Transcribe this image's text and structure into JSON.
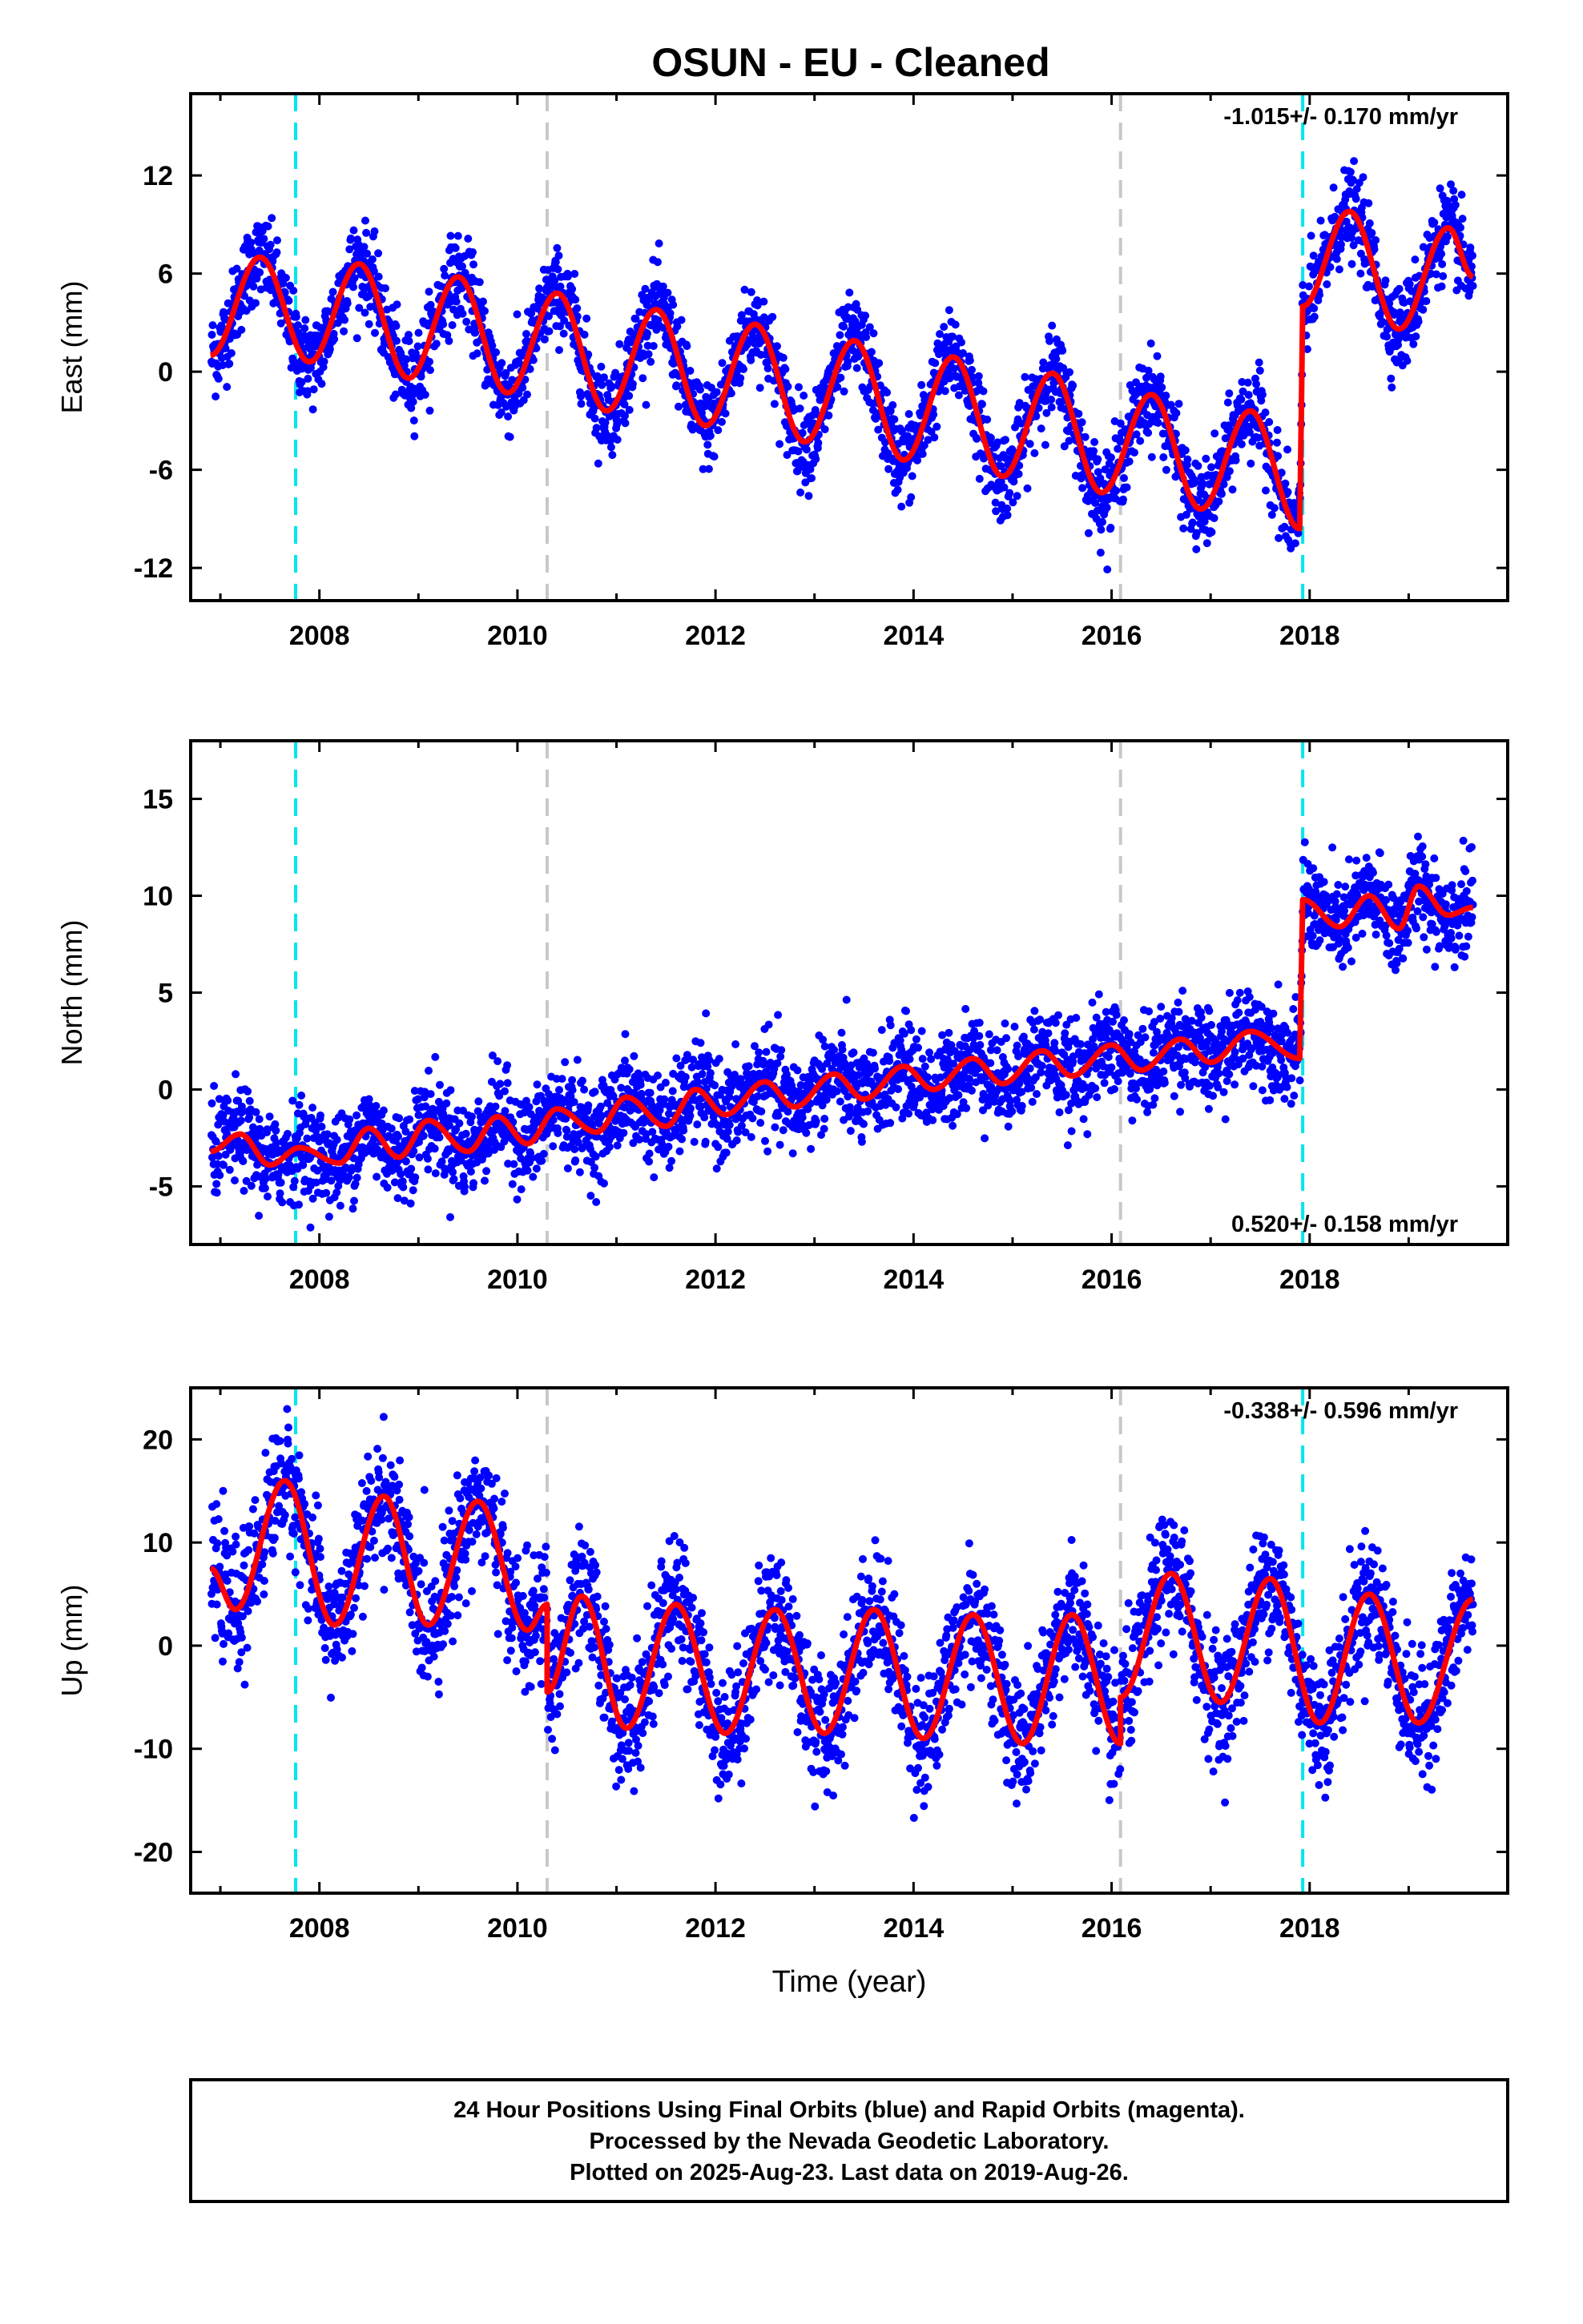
{
  "title": "OSUN  - EU - Cleaned",
  "colors": {
    "final_orbits": "#0000ff",
    "model_fit": "#ff0000",
    "equipment_change": "#00e5ee",
    "unknown_event": "#c8c8c8"
  },
  "chart_data": [
    {
      "type": "scatter",
      "ylabel": "East (mm)",
      "xlabel": "",
      "xlim": [
        2006.7,
        2020.0
      ],
      "ylim": [
        -14,
        17
      ],
      "xticks": [
        "2008",
        "2010",
        "2012",
        "2014",
        "2016",
        "2018"
      ],
      "yticks": [
        "-12",
        "-6",
        "0",
        "6",
        "12"
      ],
      "rate": "-1.015+/- 0.170 mm/yr",
      "rate_position": "top-right",
      "events": [
        {
          "year": 2007.76,
          "kind": "equipment_change"
        },
        {
          "year": 2010.3,
          "kind": "unknown_event"
        },
        {
          "year": 2016.09,
          "kind": "unknown_event"
        },
        {
          "year": 2017.93,
          "kind": "equipment_change"
        }
      ],
      "series": [
        {
          "values": [
            [
              2006.9,
              1.0
            ],
            [
              2007.4,
              7.0
            ],
            [
              2007.9,
              0.6
            ],
            [
              2008.4,
              6.6
            ],
            [
              2008.9,
              -0.4
            ],
            [
              2009.4,
              5.8
            ],
            [
              2009.9,
              -1.3
            ],
            [
              2010.4,
              4.8
            ],
            [
              2010.9,
              -2.4
            ],
            [
              2011.4,
              3.8
            ],
            [
              2011.9,
              -3.3
            ],
            [
              2012.4,
              2.9
            ],
            [
              2012.9,
              -4.3
            ],
            [
              2013.4,
              1.9
            ],
            [
              2013.9,
              -5.4
            ],
            [
              2014.4,
              0.9
            ],
            [
              2014.9,
              -6.4
            ],
            [
              2015.4,
              -0.1
            ],
            [
              2015.9,
              -7.4
            ],
            [
              2016.4,
              -1.4
            ],
            [
              2016.9,
              -8.4
            ],
            [
              2017.4,
              -2.4
            ],
            [
              2017.9,
              -9.6
            ],
            [
              2017.93,
              4.0
            ],
            [
              2018.4,
              9.8
            ],
            [
              2018.9,
              2.6
            ],
            [
              2019.4,
              8.8
            ],
            [
              2019.65,
              5.8
            ]
          ]
        }
      ]
    },
    {
      "type": "scatter",
      "ylabel": "North (mm)",
      "xlabel": "",
      "xlim": [
        2006.7,
        2020.0
      ],
      "ylim": [
        -8,
        18
      ],
      "xticks": [
        "2008",
        "2010",
        "2012",
        "2014",
        "2016",
        "2018"
      ],
      "yticks": [
        "-5",
        "0",
        "5",
        "10",
        "15"
      ],
      "rate": "0.520+/- 0.158 mm/yr",
      "rate_position": "bottom-right",
      "events": [
        {
          "year": 2007.76,
          "kind": "equipment_change"
        },
        {
          "year": 2010.3,
          "kind": "unknown_event"
        },
        {
          "year": 2016.09,
          "kind": "unknown_event"
        },
        {
          "year": 2017.93,
          "kind": "equipment_change"
        }
      ],
      "series": [
        {
          "values": [
            [
              2006.9,
              -3.2
            ],
            [
              2007.2,
              -2.3
            ],
            [
              2007.5,
              -3.9
            ],
            [
              2007.8,
              -3.0
            ],
            [
              2008.2,
              -3.8
            ],
            [
              2008.5,
              -2.0
            ],
            [
              2008.8,
              -3.5
            ],
            [
              2009.1,
              -1.6
            ],
            [
              2009.5,
              -3.2
            ],
            [
              2009.8,
              -1.4
            ],
            [
              2010.1,
              -2.8
            ],
            [
              2010.4,
              -1.0
            ],
            [
              2010.8,
              -2.2
            ],
            [
              2011.1,
              -0.4
            ],
            [
              2011.5,
              -1.9
            ],
            [
              2011.8,
              0.0
            ],
            [
              2012.1,
              -1.3
            ],
            [
              2012.5,
              0.4
            ],
            [
              2012.8,
              -0.9
            ],
            [
              2013.2,
              0.8
            ],
            [
              2013.5,
              -0.5
            ],
            [
              2013.9,
              1.2
            ],
            [
              2014.2,
              0.0
            ],
            [
              2014.6,
              1.6
            ],
            [
              2014.9,
              0.3
            ],
            [
              2015.3,
              2.0
            ],
            [
              2015.6,
              0.7
            ],
            [
              2016.0,
              2.3
            ],
            [
              2016.3,
              1.0
            ],
            [
              2016.7,
              2.6
            ],
            [
              2017.0,
              1.4
            ],
            [
              2017.4,
              3.0
            ],
            [
              2017.9,
              1.6
            ],
            [
              2017.93,
              9.8
            ],
            [
              2018.3,
              8.4
            ],
            [
              2018.6,
              10.0
            ],
            [
              2018.9,
              8.3
            ],
            [
              2019.1,
              10.5
            ],
            [
              2019.4,
              9.0
            ],
            [
              2019.65,
              9.4
            ]
          ]
        }
      ]
    },
    {
      "type": "scatter",
      "ylabel": "Up (mm)",
      "xlabel": "Time (year)",
      "xlim": [
        2006.7,
        2020.0
      ],
      "ylim": [
        -24,
        25
      ],
      "xticks": [
        "2008",
        "2010",
        "2012",
        "2014",
        "2016",
        "2018"
      ],
      "yticks": [
        "-20",
        "-10",
        "0",
        "10",
        "20"
      ],
      "rate": "-0.338+/- 0.596 mm/yr",
      "rate_position": "top-right",
      "events": [
        {
          "year": 2007.76,
          "kind": "equipment_change"
        },
        {
          "year": 2010.3,
          "kind": "unknown_event"
        },
        {
          "year": 2016.09,
          "kind": "unknown_event"
        },
        {
          "year": 2017.93,
          "kind": "equipment_change"
        }
      ],
      "series": [
        {
          "values": [
            [
              2006.9,
              7.5
            ],
            [
              2007.15,
              3.5
            ],
            [
              2007.65,
              16.0
            ],
            [
              2008.15,
              2.0
            ],
            [
              2008.65,
              14.5
            ],
            [
              2009.1,
              2.0
            ],
            [
              2009.6,
              14.0
            ],
            [
              2010.1,
              1.5
            ],
            [
              2010.3,
              4.0
            ],
            [
              2010.3,
              -4.5
            ],
            [
              2010.65,
              4.8
            ],
            [
              2011.1,
              -8.0
            ],
            [
              2011.6,
              4.0
            ],
            [
              2012.1,
              -8.5
            ],
            [
              2012.6,
              3.5
            ],
            [
              2013.1,
              -8.5
            ],
            [
              2013.6,
              3.5
            ],
            [
              2014.1,
              -9.0
            ],
            [
              2014.6,
              3.0
            ],
            [
              2015.1,
              -9.5
            ],
            [
              2015.6,
              3.0
            ],
            [
              2016.09,
              -9.5
            ],
            [
              2016.09,
              -5.0
            ],
            [
              2016.6,
              7.0
            ],
            [
              2017.1,
              -5.5
            ],
            [
              2017.6,
              6.5
            ],
            [
              2018.1,
              -7.5
            ],
            [
              2018.6,
              5.0
            ],
            [
              2019.1,
              -7.5
            ],
            [
              2019.65,
              4.5
            ]
          ]
        }
      ]
    }
  ],
  "footer": {
    "line1": "24 Hour Positions Using Final Orbits (blue) and Rapid Orbits (magenta).",
    "line2": "Processed by the Nevada Geodetic Laboratory.",
    "line3": "Plotted on 2025-Aug-23. Last data on 2019-Aug-26."
  }
}
